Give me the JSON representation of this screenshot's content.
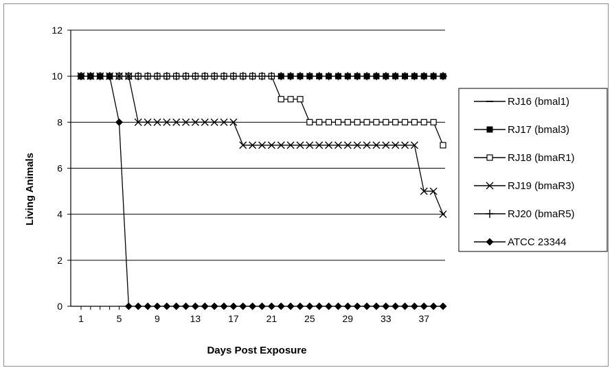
{
  "chart_data": {
    "type": "line",
    "title": "",
    "xlabel": "Days Post Exposure",
    "ylabel": "Living Animals",
    "ylim": [
      0,
      12
    ],
    "yticks": [
      0,
      2,
      4,
      6,
      8,
      10,
      12
    ],
    "xlim": [
      1,
      39
    ],
    "xticks": [
      "1",
      "5",
      "9",
      "13",
      "17",
      "21",
      "25",
      "29",
      "33",
      "37"
    ],
    "grid": "horizontal",
    "legend_position": "right",
    "series": [
      {
        "name": "RJ16 (bmal1)",
        "marker": "dash",
        "x": [
          1,
          2,
          3,
          4,
          5,
          6,
          7,
          8,
          9,
          10,
          11,
          12,
          13,
          14,
          15,
          16,
          17,
          18,
          19,
          20,
          21,
          22,
          23,
          24,
          25,
          26,
          27,
          28,
          29,
          30,
          31,
          32,
          33,
          34,
          35,
          36,
          37,
          38,
          39
        ],
        "y": [
          10,
          10,
          10,
          10,
          10,
          10,
          10,
          10,
          10,
          10,
          10,
          10,
          10,
          10,
          10,
          10,
          10,
          10,
          10,
          10,
          10,
          10,
          10,
          10,
          10,
          10,
          10,
          10,
          10,
          10,
          10,
          10,
          10,
          10,
          10,
          10,
          10,
          10,
          10
        ]
      },
      {
        "name": "RJ17 (bmal3)",
        "marker": "filled-square",
        "x": [
          1,
          2,
          3,
          4,
          5,
          6,
          7,
          8,
          9,
          10,
          11,
          12,
          13,
          14,
          15,
          16,
          17,
          18,
          19,
          20,
          21,
          22,
          23,
          24,
          25,
          26,
          27,
          28,
          29,
          30,
          31,
          32,
          33,
          34,
          35,
          36,
          37,
          38,
          39
        ],
        "y": [
          10,
          10,
          10,
          10,
          10,
          10,
          10,
          10,
          10,
          10,
          10,
          10,
          10,
          10,
          10,
          10,
          10,
          10,
          10,
          10,
          10,
          10,
          10,
          10,
          10,
          10,
          10,
          10,
          10,
          10,
          10,
          10,
          10,
          10,
          10,
          10,
          10,
          10,
          10
        ]
      },
      {
        "name": "RJ18 (bmaR1)",
        "marker": "open-square",
        "x": [
          1,
          2,
          3,
          4,
          5,
          6,
          7,
          8,
          9,
          10,
          11,
          12,
          13,
          14,
          15,
          16,
          17,
          18,
          19,
          20,
          21,
          22,
          23,
          24,
          25,
          26,
          27,
          28,
          29,
          30,
          31,
          32,
          33,
          34,
          35,
          36,
          37,
          38,
          39
        ],
        "y": [
          10,
          10,
          10,
          10,
          10,
          10,
          10,
          10,
          10,
          10,
          10,
          10,
          10,
          10,
          10,
          10,
          10,
          10,
          10,
          10,
          10,
          9,
          9,
          9,
          8,
          8,
          8,
          8,
          8,
          8,
          8,
          8,
          8,
          8,
          8,
          8,
          8,
          8,
          7
        ]
      },
      {
        "name": "RJ19 (bmaR3)",
        "marker": "x",
        "x": [
          1,
          2,
          3,
          4,
          5,
          6,
          7,
          8,
          9,
          10,
          11,
          12,
          13,
          14,
          15,
          16,
          17,
          18,
          19,
          20,
          21,
          22,
          23,
          24,
          25,
          26,
          27,
          28,
          29,
          30,
          31,
          32,
          33,
          34,
          35,
          36,
          37,
          38,
          39
        ],
        "y": [
          10,
          10,
          10,
          10,
          10,
          10,
          8,
          8,
          8,
          8,
          8,
          8,
          8,
          8,
          8,
          8,
          8,
          7,
          7,
          7,
          7,
          7,
          7,
          7,
          7,
          7,
          7,
          7,
          7,
          7,
          7,
          7,
          7,
          7,
          7,
          7,
          5,
          5,
          4
        ]
      },
      {
        "name": "RJ20 (bmaR5)",
        "marker": "plus",
        "x": [
          1,
          2,
          3,
          4,
          5,
          6,
          7,
          8,
          9,
          10,
          11,
          12,
          13,
          14,
          15,
          16,
          17,
          18,
          19,
          20,
          21,
          22,
          23,
          24,
          25,
          26,
          27,
          28,
          29,
          30,
          31,
          32,
          33,
          34,
          35,
          36,
          37,
          38,
          39
        ],
        "y": [
          10,
          10,
          10,
          10,
          10,
          10,
          10,
          10,
          10,
          10,
          10,
          10,
          10,
          10,
          10,
          10,
          10,
          10,
          10,
          10,
          10,
          10,
          10,
          10,
          10,
          10,
          10,
          10,
          10,
          10,
          10,
          10,
          10,
          10,
          10,
          10,
          10,
          10,
          10
        ]
      },
      {
        "name": "ATCC 23344",
        "marker": "diamond",
        "x": [
          1,
          2,
          3,
          4,
          5,
          6,
          7,
          8,
          9,
          10,
          11,
          12,
          13,
          14,
          15,
          16,
          17,
          18,
          19,
          20,
          21,
          22,
          23,
          24,
          25,
          26,
          27,
          28,
          29,
          30,
          31,
          32,
          33,
          34,
          35,
          36,
          37,
          38,
          39
        ],
        "y": [
          10,
          10,
          10,
          10,
          8,
          0,
          0,
          0,
          0,
          0,
          0,
          0,
          0,
          0,
          0,
          0,
          0,
          0,
          0,
          0,
          0,
          0,
          0,
          0,
          0,
          0,
          0,
          0,
          0,
          0,
          0,
          0,
          0,
          0,
          0,
          0,
          0,
          0,
          0
        ]
      }
    ]
  }
}
